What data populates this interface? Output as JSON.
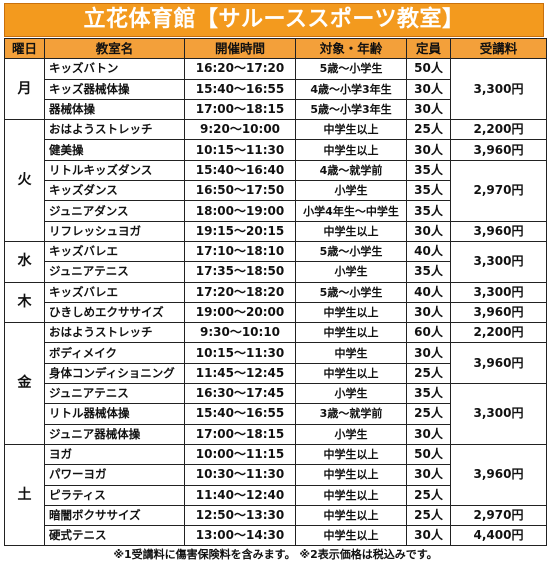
{
  "title": "立花体育館【サルーススポーツ教室】",
  "headers": {
    "day": "曜日",
    "class": "教室名",
    "time": "開催時間",
    "target": "対象・年齢",
    "capacity": "定員",
    "fee": "受講料"
  },
  "groups": [
    {
      "day": "月",
      "rows": [
        {
          "class": "キッズバトン",
          "time": "16:20～17:20",
          "target": "5歳～小学生",
          "capacity": "50人"
        },
        {
          "class": "キッズ器械体操",
          "time": "15:40～16:55",
          "target": "4歳～小学3年生",
          "capacity": "30人"
        },
        {
          "class": "器械体操",
          "time": "17:00～18:15",
          "target": "5歳～小学3年生",
          "capacity": "30人"
        }
      ]
    },
    {
      "day": "火",
      "rows": [
        {
          "class": "おはようストレッチ",
          "time": "9:20～10:00",
          "target": "中学生以上",
          "capacity": "25人"
        },
        {
          "class": "健美操",
          "time": "10:15～11:30",
          "target": "中学生以上",
          "capacity": "30人"
        },
        {
          "class": "リトルキッズダンス",
          "time": "15:40～16:40",
          "target": "4歳～就学前",
          "capacity": "35人"
        },
        {
          "class": "キッズダンス",
          "time": "16:50～17:50",
          "target": "小学生",
          "capacity": "35人"
        },
        {
          "class": "ジュニアダンス",
          "time": "18:00～19:00",
          "target": "小学4年生～中学生",
          "capacity": "35人"
        },
        {
          "class": "リフレッシュヨガ",
          "time": "19:15～20:15",
          "target": "中学生以上",
          "capacity": "30人"
        }
      ]
    },
    {
      "day": "水",
      "rows": [
        {
          "class": "キッズバレエ",
          "time": "17:10～18:10",
          "target": "5歳～小学生",
          "capacity": "40人"
        },
        {
          "class": "ジュニアテニス",
          "time": "17:35～18:50",
          "target": "小学生",
          "capacity": "35人"
        }
      ]
    },
    {
      "day": "木",
      "rows": [
        {
          "class": "キッズバレエ",
          "time": "17:20～18:20",
          "target": "5歳～小学生",
          "capacity": "40人"
        },
        {
          "class": "ひきしめエクササイズ",
          "time": "19:00～20:00",
          "target": "中学生以上",
          "capacity": "30人"
        }
      ]
    },
    {
      "day": "金",
      "rows": [
        {
          "class": "おはようストレッチ",
          "time": "9:30～10:10",
          "target": "中学生以上",
          "capacity": "60人"
        },
        {
          "class": "ボディメイク",
          "time": "10:15～11:30",
          "target": "中学生",
          "capacity": "30人"
        },
        {
          "class": "身体コンディショニング",
          "time": "11:45～12:45",
          "target": "中学生以上",
          "capacity": "25人"
        },
        {
          "class": "ジュニアテニス",
          "time": "16:30～17:45",
          "target": "小学生",
          "capacity": "35人"
        },
        {
          "class": "リトル器械体操",
          "time": "15:40～16:55",
          "target": "3歳～就学前",
          "capacity": "25人"
        },
        {
          "class": "ジュニア器械体操",
          "time": "17:00～18:15",
          "target": "小学生",
          "capacity": "30人"
        }
      ]
    },
    {
      "day": "土",
      "rows": [
        {
          "class": "ヨガ",
          "time": "10:00～11:15",
          "target": "中学生以上",
          "capacity": "50人"
        },
        {
          "class": "パワーヨガ",
          "time": "10:30～11:30",
          "target": "中学生以上",
          "capacity": "30人"
        },
        {
          "class": "ピラティス",
          "time": "11:40～12:40",
          "target": "中学生以上",
          "capacity": "25人"
        },
        {
          "class": "暗闇ボクササイズ",
          "time": "12:50～13:30",
          "target": "中学生以上",
          "capacity": "25人"
        },
        {
          "class": "硬式テニス",
          "time": "13:00～14:30",
          "target": "中学生以上",
          "capacity": "30人"
        }
      ]
    }
  ],
  "fees": [
    {
      "value": "3,300円",
      "start": 0,
      "span": 3
    },
    {
      "value": "2,200円",
      "start": 3,
      "span": 1
    },
    {
      "value": "3,960円",
      "start": 4,
      "span": 1
    },
    {
      "value": "2,970円",
      "start": 5,
      "span": 3
    },
    {
      "value": "3,960円",
      "start": 8,
      "span": 1
    },
    {
      "value": "3,300円",
      "start": 9,
      "span": 2
    },
    {
      "value": "3,300円",
      "start": 11,
      "span": 1
    },
    {
      "value": "3,960円",
      "start": 12,
      "span": 1
    },
    {
      "value": "2,200円",
      "start": 13,
      "span": 1
    },
    {
      "value": "3,960円",
      "start": 14,
      "span": 2
    },
    {
      "value": "3,300円",
      "start": 16,
      "span": 3
    },
    {
      "value": "3,960円",
      "start": 19,
      "span": 3
    },
    {
      "value": "2,970円",
      "start": 22,
      "span": 1
    },
    {
      "value": "4,400円",
      "start": 23,
      "span": 1
    }
  ],
  "note": "※1受講料に傷害保険料を含みます。 ※2表示価格は税込みです。",
  "colors": {
    "header_bg": "#f3a03a",
    "title_bg": "#f39a1e"
  }
}
